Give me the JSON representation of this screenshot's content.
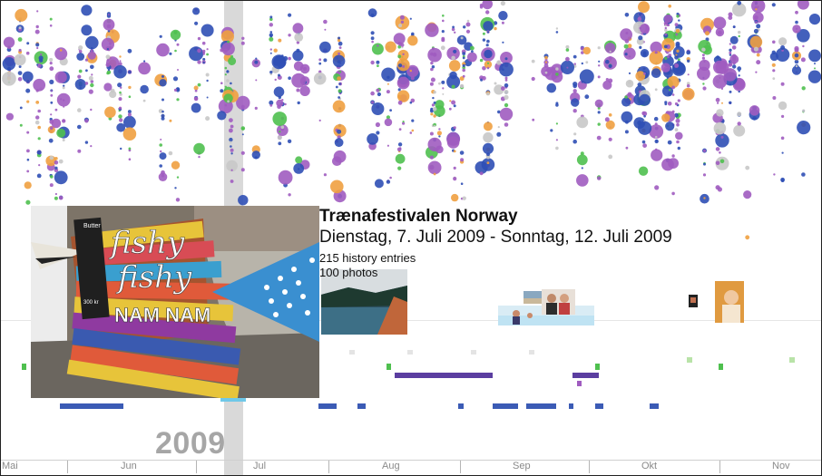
{
  "event": {
    "title": "Trænafestivalen Norway",
    "dates": "Dienstag, 7. Juli 2009 - Sonntag, 12. Juli 2009",
    "history_entries": "215 history entries",
    "photos": "100 photos"
  },
  "timeline": {
    "year": "2009",
    "months": [
      "Mai",
      "Jun",
      "Jul",
      "Aug",
      "Sep",
      "Okt",
      "Nov"
    ]
  },
  "colors": {
    "purple": "#a05cc0",
    "blue": "#2f4fb5",
    "green": "#4fc04f",
    "gray": "#c8c8c8",
    "orange": "#f0a040",
    "bar_purple": "#5b3ea0",
    "bar_blue": "#3b5bb5",
    "highlight": "#d9d9d9"
  },
  "photo_main": {
    "sign_text": [
      "fishy",
      "fishy",
      "NAM NAM"
    ]
  }
}
